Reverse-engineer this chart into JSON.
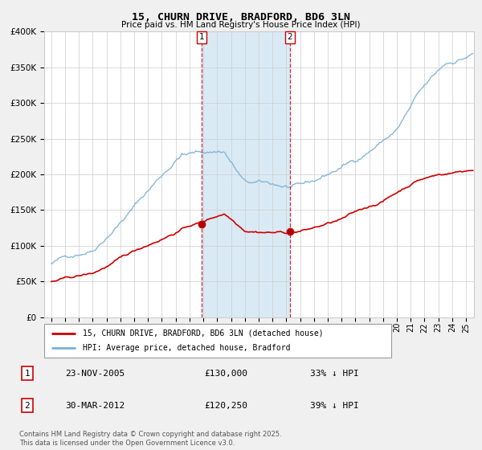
{
  "title": "15, CHURN DRIVE, BRADFORD, BD6 3LN",
  "subtitle": "Price paid vs. HM Land Registry's House Price Index (HPI)",
  "ylim": [
    0,
    400000
  ],
  "xlim_start": 1994.5,
  "xlim_end": 2025.6,
  "sale1_date": 2005.9,
  "sale1_price": 130000,
  "sale2_date": 2012.25,
  "sale2_price": 120250,
  "red_color": "#cc0000",
  "blue_color": "#7ab0d4",
  "shade_color": "#daeaf5",
  "vline_color": "#cc0000",
  "legend_label_red": "15, CHURN DRIVE, BRADFORD, BD6 3LN (detached house)",
  "legend_label_blue": "HPI: Average price, detached house, Bradford",
  "footer": "Contains HM Land Registry data © Crown copyright and database right 2025.\nThis data is licensed under the Open Government Licence v3.0.",
  "table_row1": [
    "1",
    "23-NOV-2005",
    "£130,000",
    "33% ↓ HPI"
  ],
  "table_row2": [
    "2",
    "30-MAR-2012",
    "£120,250",
    "39% ↓ HPI"
  ],
  "bg_color": "#f0f0f0"
}
